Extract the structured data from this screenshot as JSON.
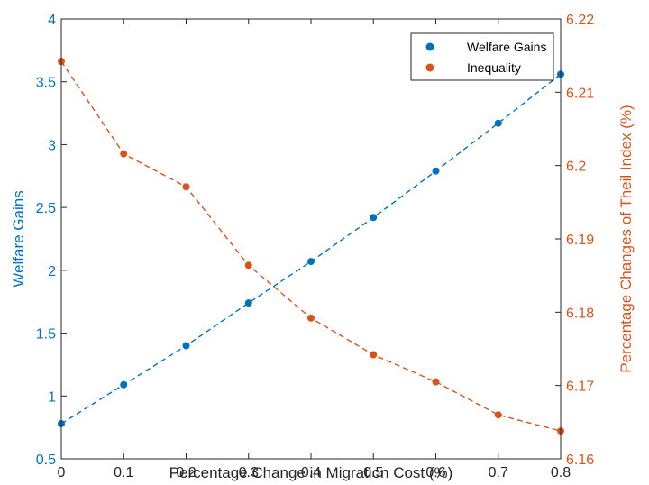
{
  "chart_data": {
    "type": "line",
    "xlabel": "Percentage Change in Migration Cost (%)",
    "x": [
      0,
      0.1,
      0.2,
      0.3,
      0.4,
      0.5,
      0.6,
      0.7,
      0.8
    ],
    "xlim": [
      0,
      0.8
    ],
    "xticks": [
      "0",
      "0.1",
      "0.2",
      "0.3",
      "0.4",
      "0.5",
      "0.6",
      "0.7",
      "0.8"
    ],
    "y_left": {
      "label": "Welfare Gains",
      "lim": [
        0.5,
        4
      ],
      "ticks": [
        "0.5",
        "1",
        "1.5",
        "2",
        "2.5",
        "3",
        "3.5",
        "4"
      ],
      "color": "#0072BD"
    },
    "y_right": {
      "label": "Percentage Changes of Theil Index (%)",
      "lim": [
        6.16,
        6.22
      ],
      "ticks": [
        "6.16",
        "6.17",
        "6.18",
        "6.19",
        "6.2",
        "6.21",
        "6.22"
      ],
      "color": "#D95319"
    },
    "series": [
      {
        "name": "Welfare Gains",
        "axis": "left",
        "color": "#0072BD",
        "values": [
          0.78,
          1.09,
          1.4,
          1.74,
          2.07,
          2.42,
          2.79,
          3.17,
          3.56
        ]
      },
      {
        "name": "Inequality",
        "axis": "right",
        "color": "#D95319",
        "values": [
          6.2142,
          6.2016,
          6.1971,
          6.1864,
          6.1792,
          6.1742,
          6.1705,
          6.166,
          6.1638
        ]
      }
    ],
    "grid": false,
    "legend_position": "top-right",
    "line_style": "dashed",
    "marker": "circle"
  }
}
